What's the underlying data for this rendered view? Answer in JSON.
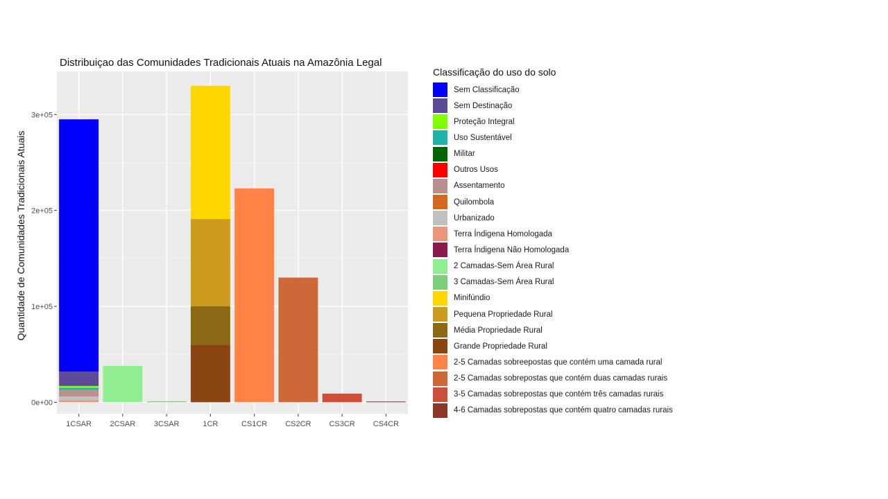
{
  "chart_data": {
    "type": "bar",
    "stacked": true,
    "title": "Distribuiçao das Comunidades Tradicionais Atuais na Amazônia Legal",
    "xlabel": "",
    "ylabel": "Quantidade de Comunidades Tradicionais Atuais",
    "ylim": [
      -12000,
      345000
    ],
    "yticks": [
      0,
      100000,
      200000,
      300000
    ],
    "ytick_labels": [
      "0e+00",
      "1e+05",
      "2e+05",
      "3e+05"
    ],
    "grid": true,
    "legend_title": "Classificação do uso do solo",
    "legend_position": "right",
    "categories": [
      "1CSAR",
      "2CSAR",
      "3CSAR",
      "1CR",
      "CS1CR",
      "CS2CR",
      "CS3CR",
      "CS4CR"
    ],
    "series": [
      {
        "name": "Sem Classificação",
        "color": "#0000FF",
        "values": [
          263000,
          0,
          0,
          0,
          0,
          0,
          0,
          0
        ]
      },
      {
        "name": "Sem Destinação",
        "color": "#5C4A96",
        "values": [
          15000,
          0,
          0,
          0,
          0,
          0,
          0,
          0
        ]
      },
      {
        "name": "Proteção Integral",
        "color": "#7FFF00",
        "values": [
          2000,
          0,
          0,
          0,
          0,
          0,
          0,
          0
        ]
      },
      {
        "name": "Uso Sustentável",
        "color": "#20B2AA",
        "values": [
          2000,
          0,
          0,
          0,
          0,
          0,
          0,
          0
        ]
      },
      {
        "name": "Militar",
        "color": "#006400",
        "values": [
          0,
          0,
          0,
          0,
          0,
          0,
          0,
          0
        ]
      },
      {
        "name": "Outros Usos",
        "color": "#FF0000",
        "values": [
          0,
          0,
          0,
          0,
          0,
          0,
          0,
          0
        ]
      },
      {
        "name": "Assentamento",
        "color": "#BC8F8F",
        "values": [
          7000,
          0,
          0,
          0,
          0,
          0,
          0,
          0
        ]
      },
      {
        "name": "Quilombola",
        "color": "#D2691E",
        "values": [
          0,
          0,
          0,
          0,
          0,
          0,
          0,
          0
        ]
      },
      {
        "name": "Urbanizado",
        "color": "#C0C0C0",
        "values": [
          4000,
          0,
          0,
          0,
          0,
          0,
          0,
          0
        ]
      },
      {
        "name": "Terra Índigena Homologada",
        "color": "#E9967A",
        "values": [
          2000,
          0,
          0,
          0,
          0,
          0,
          0,
          0
        ]
      },
      {
        "name": "Terra Índigena Não Homologada",
        "color": "#8B1A4F",
        "values": [
          0,
          0,
          0,
          0,
          0,
          0,
          0,
          0
        ]
      },
      {
        "name": "2 Camadas-Sem Área Rural",
        "color": "#90EE90",
        "values": [
          0,
          38000,
          0,
          0,
          0,
          0,
          0,
          0
        ]
      },
      {
        "name": "3 Camadas-Sem Área Rural",
        "color": "#7CCD7C",
        "values": [
          0,
          0,
          1000,
          0,
          0,
          0,
          0,
          0
        ]
      },
      {
        "name": "Minifúndio",
        "color": "#FFD700",
        "values": [
          0,
          0,
          0,
          139000,
          0,
          0,
          0,
          0
        ]
      },
      {
        "name": "Pequena Propriedade Rural",
        "color": "#CD9B1D",
        "values": [
          0,
          0,
          0,
          91000,
          0,
          0,
          0,
          0
        ]
      },
      {
        "name": "Média Propriedade Rural",
        "color": "#8B6914",
        "values": [
          0,
          0,
          0,
          40000,
          0,
          0,
          0,
          0
        ]
      },
      {
        "name": "Grande Propriedade Rural",
        "color": "#8B4513",
        "values": [
          0,
          0,
          0,
          60000,
          0,
          0,
          0,
          0
        ]
      },
      {
        "name": "2-5 Camadas sobreepostas que contém  uma camada rural",
        "color": "#FF8247",
        "values": [
          0,
          0,
          0,
          0,
          223000,
          0,
          0,
          0
        ]
      },
      {
        "name": "2-5 Camadas sobrepostas que contém duas camadas rurais",
        "color": "#CD6839",
        "values": [
          0,
          0,
          0,
          0,
          0,
          130000,
          0,
          0
        ]
      },
      {
        "name": "3-5 Camadas sobrepostas que contém três camadas rurais",
        "color": "#CD4F39",
        "values": [
          0,
          0,
          0,
          0,
          0,
          0,
          9000,
          0
        ]
      },
      {
        "name": "4-6 Camadas sobrepostas que contém quatro camadas rurais",
        "color": "#8B3626",
        "values": [
          0,
          0,
          0,
          0,
          0,
          0,
          0,
          800
        ]
      }
    ]
  }
}
